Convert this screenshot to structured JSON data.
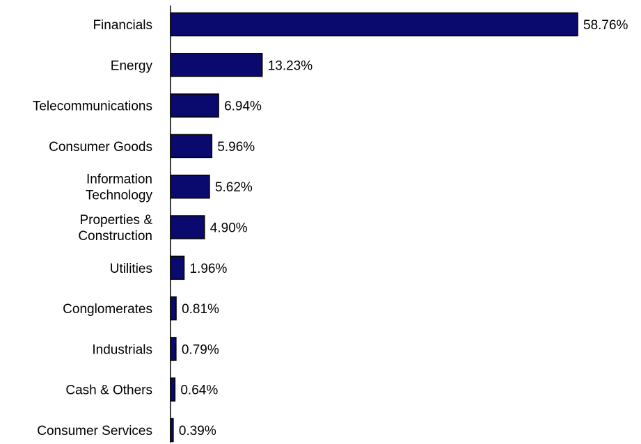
{
  "chart_data": {
    "type": "bar",
    "orientation": "horizontal",
    "title": "",
    "xlabel": "",
    "ylabel": "",
    "categories": [
      "Financials",
      "Energy",
      "Telecommunications",
      "Consumer Goods",
      "Information Technology",
      "Properties & Construction",
      "Utilities",
      "Conglomerates",
      "Industrials",
      "Cash & Others",
      "Consumer Services"
    ],
    "category_lines": [
      [
        "Financials"
      ],
      [
        "Energy"
      ],
      [
        "Telecommunications"
      ],
      [
        "Consumer Goods"
      ],
      [
        "Information",
        "Technology"
      ],
      [
        "Properties &",
        "Construction"
      ],
      [
        "Utilities"
      ],
      [
        "Conglomerates"
      ],
      [
        "Industrials"
      ],
      [
        "Cash & Others"
      ],
      [
        "Consumer Services"
      ]
    ],
    "values": [
      58.76,
      13.23,
      6.94,
      5.96,
      5.62,
      4.9,
      1.96,
      0.81,
      0.79,
      0.64,
      0.39
    ],
    "value_labels": [
      "58.76%",
      "13.23%",
      "6.94%",
      "5.96%",
      "5.62%",
      "4.90%",
      "1.96%",
      "0.81%",
      "0.79%",
      "0.64%",
      "0.39%"
    ],
    "unit": "%",
    "xlim": [
      0,
      58.76
    ],
    "grid": false,
    "legend": "none",
    "bar_color": "#0a0a6e"
  }
}
